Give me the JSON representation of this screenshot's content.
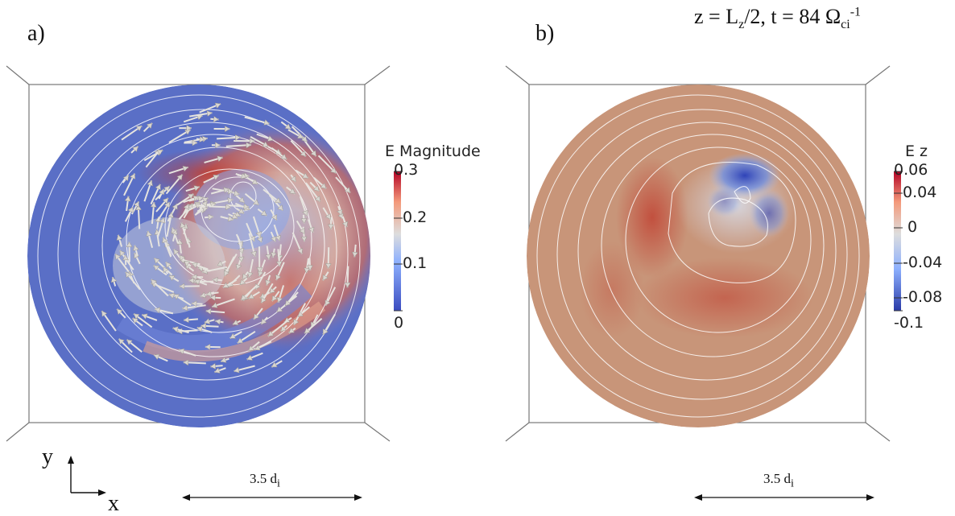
{
  "panel_a": {
    "label": "a)",
    "colorbar": {
      "title": "E Magnitude",
      "ticks": [
        "0.3",
        "0.2",
        "0.1",
        "0"
      ],
      "range": [
        0,
        0.3
      ]
    },
    "scale_bar": {
      "text": "3.5 d",
      "sub": "i"
    }
  },
  "panel_b": {
    "label": "b)",
    "colorbar": {
      "title": "E z",
      "ticks": [
        "0.06",
        "0.04",
        "0",
        "-0.04",
        "-0.08",
        "-0.1"
      ],
      "range": [
        -0.1,
        0.06
      ]
    },
    "scale_bar": {
      "text": "3.5 d",
      "sub": "i"
    }
  },
  "time_label": {
    "part1": "z = L",
    "sub1": "z",
    "part2": "/2, t = 84 Ω",
    "sub2": "ci",
    "sup2": "-1"
  },
  "axes_indicator": {
    "y": "y",
    "x": "x"
  },
  "colors": {
    "cool": "#3b4cc0",
    "neutral": "#dddddd",
    "warm": "#b40426",
    "background_disk_b": "#c9957a",
    "contour": "#ffffff"
  }
}
